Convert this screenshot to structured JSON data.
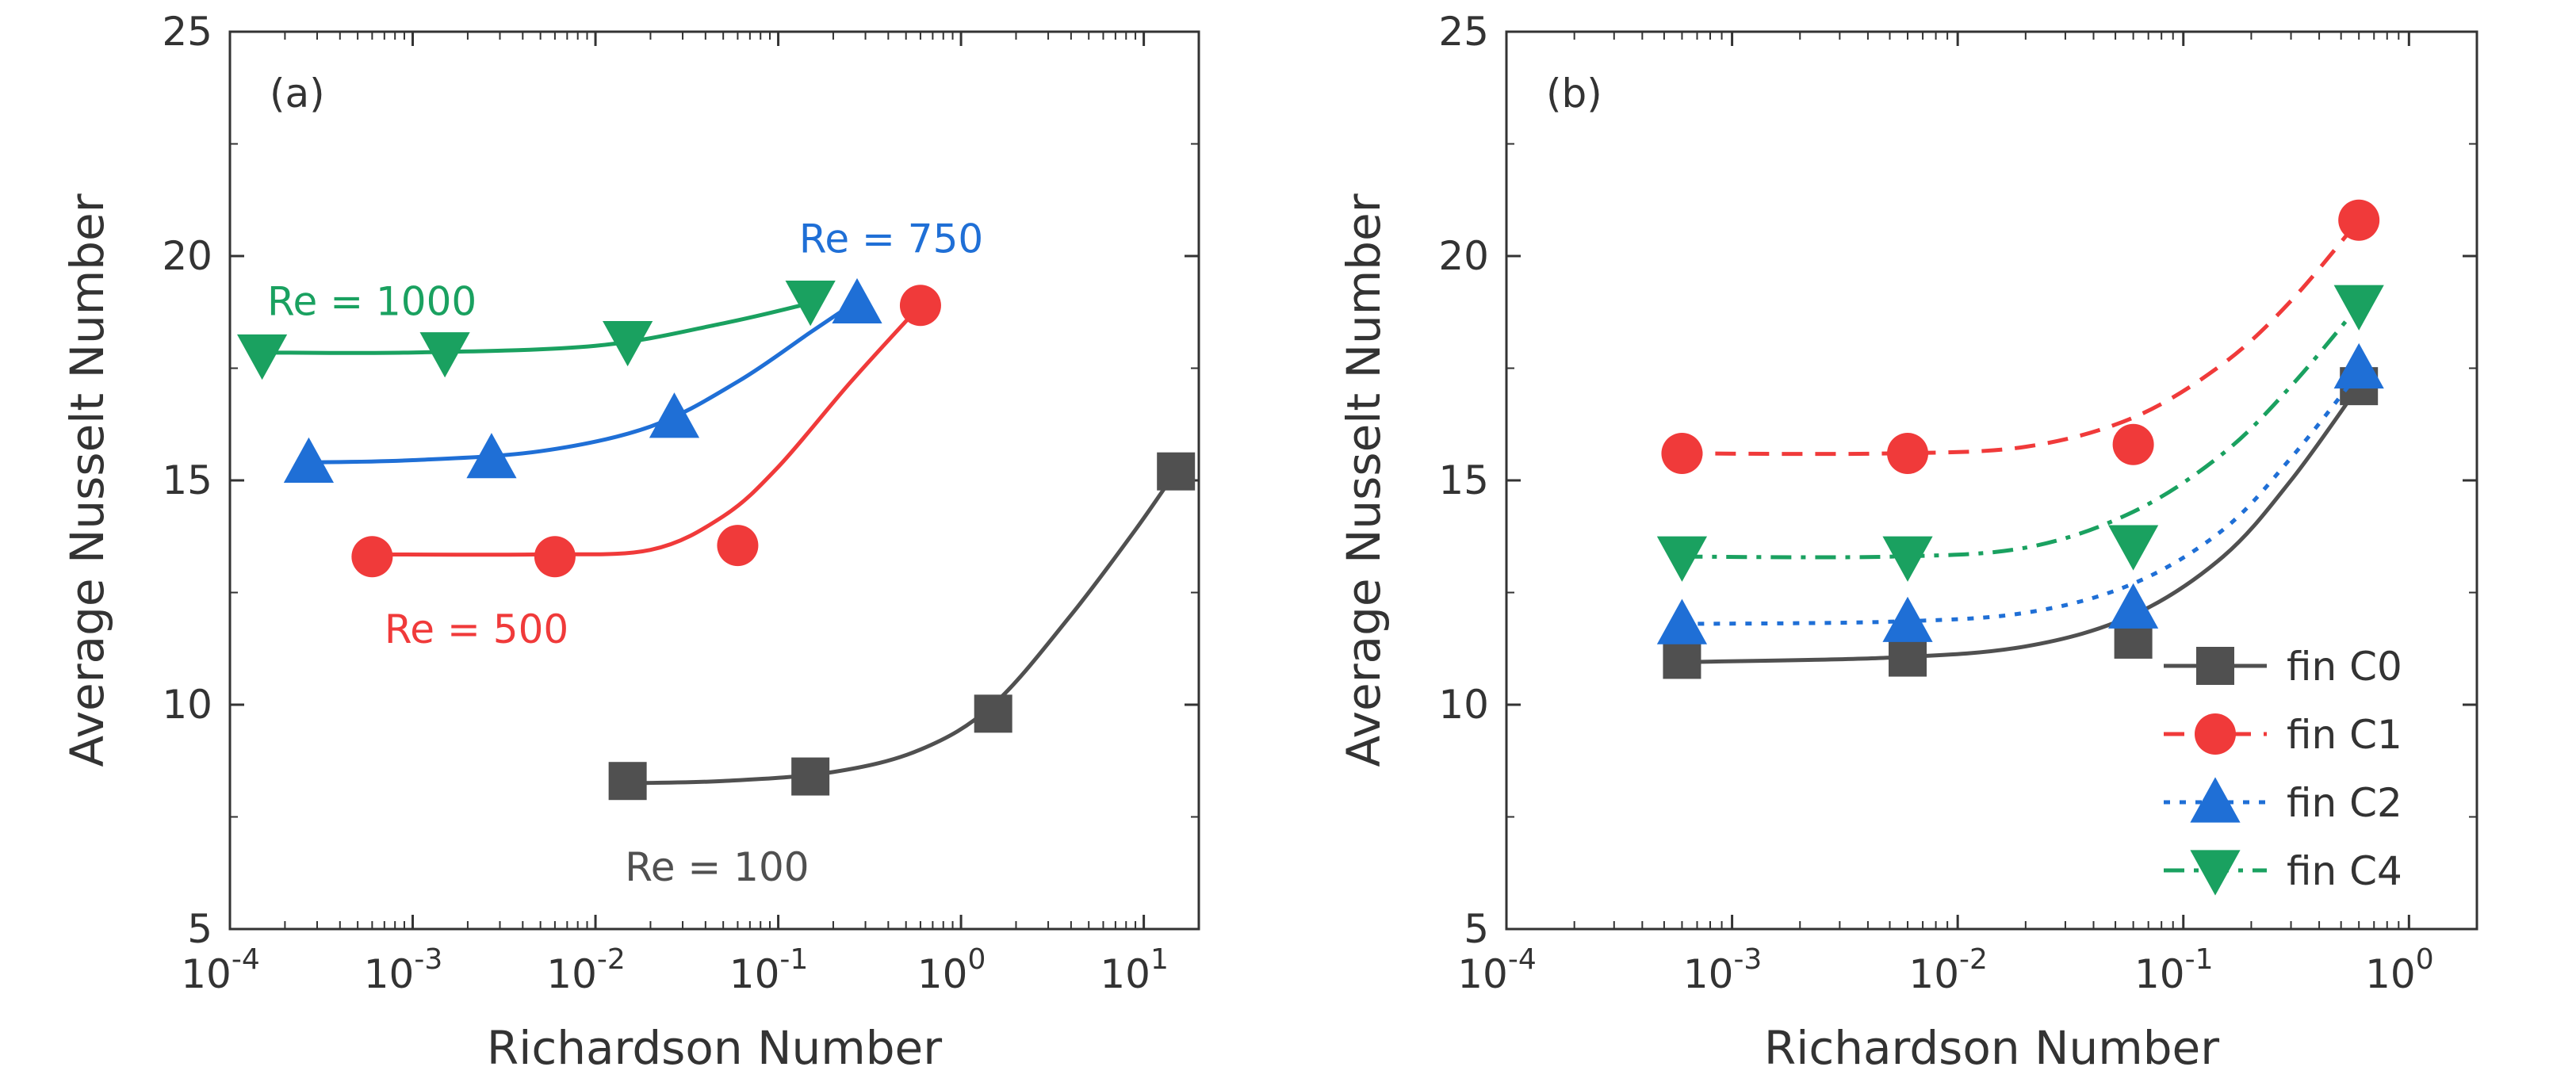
{
  "chart_data": [
    {
      "panel_label": "(a)",
      "type": "scatter",
      "xlabel": "Richardson Number",
      "ylabel": "Average Nusselt Number",
      "xscale": "log",
      "xlim": [
        0.0001,
        20
      ],
      "ylim": [
        5,
        25
      ],
      "xticks": [
        {
          "value": 0.0001,
          "base": "10",
          "exp": "-4"
        },
        {
          "value": 0.001,
          "base": "10",
          "exp": "-3"
        },
        {
          "value": 0.01,
          "base": "10",
          "exp": "-2"
        },
        {
          "value": 0.1,
          "base": "10",
          "exp": "-1"
        },
        {
          "value": 1,
          "base": "10",
          "exp": "0"
        },
        {
          "value": 10,
          "base": "10",
          "exp": "1"
        }
      ],
      "yticks": [
        "5",
        "10",
        "15",
        "20",
        "25"
      ],
      "series": [
        {
          "label": "Re = 1000",
          "color": "#1aa160",
          "marker": "triangle-down",
          "points": [
            [
              0.00015,
              17.8
            ],
            [
              0.0015,
              17.85
            ],
            [
              0.015,
              18.1
            ],
            [
              0.15,
              19.0
            ]
          ],
          "fit": [
            [
              0.00015,
              17.85
            ],
            [
              0.001,
              17.85
            ],
            [
              0.01,
              18.0
            ],
            [
              0.05,
              18.5
            ],
            [
              0.15,
              18.95
            ]
          ],
          "label_pos": [
            0.00016,
            19.0
          ]
        },
        {
          "label": "Re = 750",
          "color": "#1f6fd6",
          "marker": "triangle-up",
          "points": [
            [
              0.00027,
              15.4
            ],
            [
              0.0027,
              15.5
            ],
            [
              0.027,
              16.4
            ],
            [
              0.27,
              18.95
            ]
          ],
          "fit": [
            [
              0.00027,
              15.4
            ],
            [
              0.001,
              15.45
            ],
            [
              0.005,
              15.65
            ],
            [
              0.02,
              16.2
            ],
            [
              0.06,
              17.2
            ],
            [
              0.15,
              18.3
            ],
            [
              0.27,
              19.0
            ]
          ],
          "label_pos": [
            0.13,
            20.4
          ]
        },
        {
          "label": "Re = 500",
          "color": "#f03a3a",
          "marker": "circle",
          "points": [
            [
              0.0006,
              13.3
            ],
            [
              0.006,
              13.3
            ],
            [
              0.06,
              13.55
            ],
            [
              0.6,
              18.9
            ]
          ],
          "fit": [
            [
              0.0006,
              13.35
            ],
            [
              0.005,
              13.35
            ],
            [
              0.02,
              13.45
            ],
            [
              0.05,
              14.2
            ],
            [
              0.1,
              15.3
            ],
            [
              0.25,
              17.2
            ],
            [
              0.6,
              18.9
            ]
          ],
          "label_pos": [
            0.0007,
            11.7
          ]
        },
        {
          "label": "Re = 100",
          "color": "#505050",
          "marker": "square",
          "points": [
            [
              0.015,
              8.3
            ],
            [
              0.15,
              8.4
            ],
            [
              1.5,
              9.8
            ],
            [
              15,
              15.2
            ]
          ],
          "fit": [
            [
              0.015,
              8.25
            ],
            [
              0.05,
              8.3
            ],
            [
              0.2,
              8.5
            ],
            [
              0.6,
              9.0
            ],
            [
              1.5,
              10.0
            ],
            [
              4,
              12.0
            ],
            [
              9,
              13.9
            ],
            [
              15,
              15.2
            ]
          ],
          "label_pos": [
            0.0145,
            6.4
          ]
        }
      ]
    },
    {
      "panel_label": "(b)",
      "type": "scatter",
      "xlabel": "Richardson Number",
      "ylabel": "Average Nusselt Number",
      "xscale": "log",
      "xlim": [
        0.0001,
        2
      ],
      "ylim": [
        5,
        25
      ],
      "xticks": [
        {
          "value": 0.0001,
          "base": "10",
          "exp": "-4"
        },
        {
          "value": 0.001,
          "base": "10",
          "exp": "-3"
        },
        {
          "value": 0.01,
          "base": "10",
          "exp": "-2"
        },
        {
          "value": 0.1,
          "base": "10",
          "exp": "-1"
        },
        {
          "value": 1,
          "base": "10",
          "exp": "0"
        }
      ],
      "yticks": [
        "5",
        "10",
        "15",
        "20",
        "25"
      ],
      "legend_position": "bottom-right",
      "series": [
        {
          "name": "fin C0",
          "color": "#505050",
          "marker": "square",
          "dash": "solid",
          "points": [
            [
              0.0006,
              11.0
            ],
            [
              0.006,
              11.05
            ],
            [
              0.06,
              11.45
            ],
            [
              0.6,
              17.1
            ]
          ],
          "fit": [
            [
              0.0006,
              10.95
            ],
            [
              0.005,
              11.05
            ],
            [
              0.02,
              11.3
            ],
            [
              0.06,
              12.0
            ],
            [
              0.15,
              13.3
            ],
            [
              0.3,
              15.0
            ],
            [
              0.6,
              17.1
            ]
          ]
        },
        {
          "name": "fin C1",
          "color": "#f03a3a",
          "marker": "circle",
          "dash": "dashed",
          "points": [
            [
              0.0006,
              15.6
            ],
            [
              0.006,
              15.6
            ],
            [
              0.06,
              15.8
            ],
            [
              0.6,
              20.8
            ]
          ],
          "fit": [
            [
              0.0006,
              15.6
            ],
            [
              0.005,
              15.6
            ],
            [
              0.02,
              15.75
            ],
            [
              0.06,
              16.4
            ],
            [
              0.15,
              17.6
            ],
            [
              0.3,
              19.0
            ],
            [
              0.6,
              20.8
            ]
          ]
        },
        {
          "name": "fin C2",
          "color": "#1f6fd6",
          "marker": "triangle-up",
          "dash": "dotted",
          "points": [
            [
              0.0006,
              11.8
            ],
            [
              0.006,
              11.85
            ],
            [
              0.06,
              12.15
            ],
            [
              0.6,
              17.5
            ]
          ],
          "fit": [
            [
              0.0006,
              11.8
            ],
            [
              0.005,
              11.85
            ],
            [
              0.02,
              12.05
            ],
            [
              0.06,
              12.7
            ],
            [
              0.15,
              13.9
            ],
            [
              0.3,
              15.5
            ],
            [
              0.6,
              17.4
            ]
          ]
        },
        {
          "name": "fin C4",
          "color": "#1aa160",
          "marker": "triangle-down",
          "dash": "dashdot",
          "points": [
            [
              0.0006,
              13.3
            ],
            [
              0.006,
              13.3
            ],
            [
              0.06,
              13.55
            ],
            [
              0.6,
              18.9
            ]
          ],
          "fit": [
            [
              0.0006,
              13.3
            ],
            [
              0.005,
              13.3
            ],
            [
              0.02,
              13.5
            ],
            [
              0.06,
              14.3
            ],
            [
              0.15,
              15.6
            ],
            [
              0.3,
              17.1
            ],
            [
              0.6,
              18.9
            ]
          ]
        }
      ]
    }
  ]
}
